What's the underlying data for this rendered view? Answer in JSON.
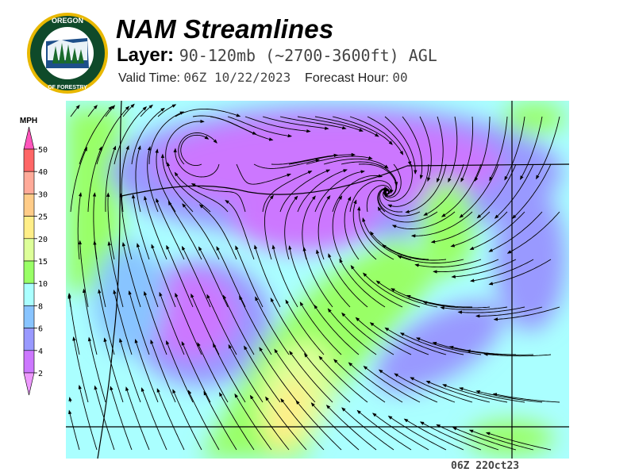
{
  "header": {
    "title": "NAM Streamlines",
    "layer_label": "Layer:",
    "layer_value": "90-120mb (~2700-3600ft) AGL",
    "valid_label": "Valid Time:",
    "valid_value": "06Z 10/22/2023",
    "forecast_label": "Forecast Hour:",
    "forecast_value": "00"
  },
  "logo": {
    "text_top": "OREGON",
    "text_bottom": "DEPARTMENT OF FORESTRY"
  },
  "legend": {
    "unit": "MPH",
    "ticks": [
      "50",
      "40",
      "30",
      "25",
      "20",
      "15",
      "10",
      "8",
      "6",
      "4",
      "2"
    ],
    "colors": {
      "above": "#ff55bb",
      "bins": [
        "#ff6666",
        "#ffaa99",
        "#ffcc88",
        "#ffee88",
        "#ddff99",
        "#99ff66",
        "#aaffff",
        "#88c4ff",
        "#9999ff",
        "#cc77ff"
      ],
      "below": "#ee99ff"
    }
  },
  "map": {
    "type": "streamlines",
    "region": "Oregon"
  },
  "footer": {
    "timestamp": "06Z 22Oct23"
  }
}
